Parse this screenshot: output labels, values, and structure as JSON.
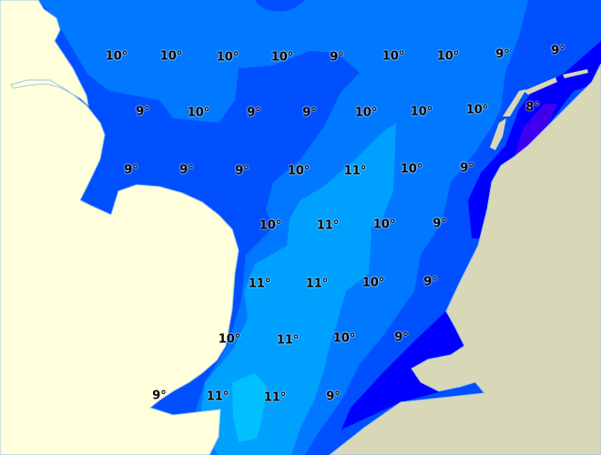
{
  "map": {
    "colors": {
      "land_west": "#ffffdc",
      "land_east": "#d8d7b8",
      "t8_minus": "#4000ee",
      "t8": "#0000ff",
      "t9": "#0050ff",
      "t10": "#0078ff",
      "t11": "#00a0ff",
      "t11_plus": "#00c0ff"
    },
    "labels": [
      "10°",
      "10°",
      "10°",
      "10°",
      "9°",
      "10°",
      "10°",
      "9°",
      "9°",
      "9°",
      "10°",
      "9°",
      "9°",
      "10°",
      "10°",
      "10°",
      "8°",
      "9°",
      "9°",
      "9°",
      "10°",
      "11°",
      "10°",
      "9°",
      "10°",
      "11°",
      "10°",
      "9°",
      "11°",
      "11°",
      "10°",
      "9°",
      "10°",
      "11°",
      "10°",
      "9°",
      "9°",
      "11°",
      "11°",
      "9°"
    ]
  }
}
